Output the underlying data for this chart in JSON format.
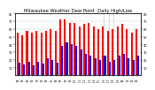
{
  "title": "Milwaukee Weather Dew Point  Daily High/Low",
  "title_fontsize": 3.8,
  "background_color": "#ffffff",
  "bar_color_high": "#ff0000",
  "bar_color_low": "#0000ff",
  "ylim": [
    0,
    80
  ],
  "yticks": [
    10,
    20,
    30,
    40,
    50,
    60,
    70,
    80
  ],
  "ytick_labels": [
    "1.",
    "2.",
    "3.",
    "4.",
    "5.",
    "6.",
    "7.",
    "8."
  ],
  "categories": [
    "'98",
    "'99",
    "'00",
    "'01",
    "'02",
    "'03",
    "'04",
    "'05",
    "'06",
    "'07",
    "'08",
    "'09",
    "'10",
    "'11",
    "'12",
    "'13",
    "'14",
    "'15",
    "'16",
    "'17",
    "'18",
    "'19",
    "'20",
    "'21",
    "'22",
    "'23"
  ],
  "highs": [
    55,
    52,
    57,
    55,
    57,
    55,
    57,
    60,
    57,
    72,
    72,
    68,
    68,
    63,
    67,
    68,
    63,
    60,
    63,
    58,
    60,
    63,
    67,
    60,
    55,
    60
  ],
  "lows": [
    16,
    14,
    18,
    13,
    18,
    15,
    22,
    20,
    16,
    38,
    43,
    40,
    38,
    33,
    28,
    26,
    22,
    20,
    25,
    17,
    20,
    26,
    28,
    22,
    20,
    26
  ],
  "grid_color": "#cccccc",
  "dashed_indices": [
    18,
    19,
    20
  ],
  "bar_width": 0.38
}
